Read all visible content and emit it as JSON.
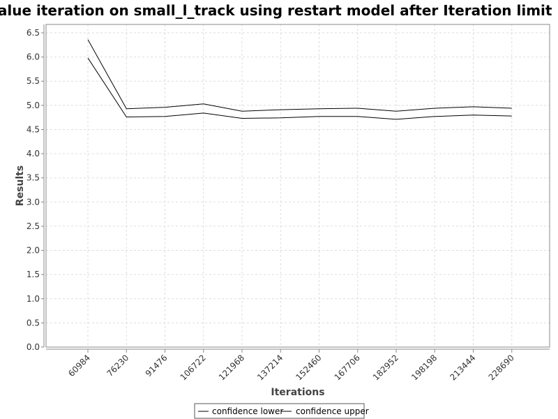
{
  "chart_data": {
    "type": "line",
    "title": "Value iteration on small_l_track using restart model after Iteration limit",
    "xlabel": "Iterations",
    "ylabel": "Results",
    "categories": [
      "60984",
      "76230",
      "91476",
      "106722",
      "121968",
      "137214",
      "152460",
      "167706",
      "182952",
      "198198",
      "213444",
      "228690"
    ],
    "series": [
      {
        "name": "confidence lower",
        "values": [
          5.98,
          4.76,
          4.77,
          4.84,
          4.73,
          4.74,
          4.77,
          4.77,
          4.71,
          4.77,
          4.8,
          4.78
        ]
      },
      {
        "name": "confidence upper",
        "values": [
          6.36,
          4.93,
          4.96,
          5.03,
          4.88,
          4.91,
          4.93,
          4.94,
          4.88,
          4.94,
          4.97,
          4.94
        ]
      }
    ],
    "ylim": [
      0,
      6.6
    ],
    "yticks": [
      "0.0",
      "0.5",
      "1.0",
      "1.5",
      "2.0",
      "2.5",
      "3.0",
      "3.5",
      "4.0",
      "4.5",
      "5.0",
      "5.5",
      "6.0",
      "6.5"
    ],
    "grid": true,
    "legend_position": "bottom-center",
    "colors": {
      "line": "#000000",
      "grid": "#dddddd",
      "axis": "#888888"
    }
  }
}
